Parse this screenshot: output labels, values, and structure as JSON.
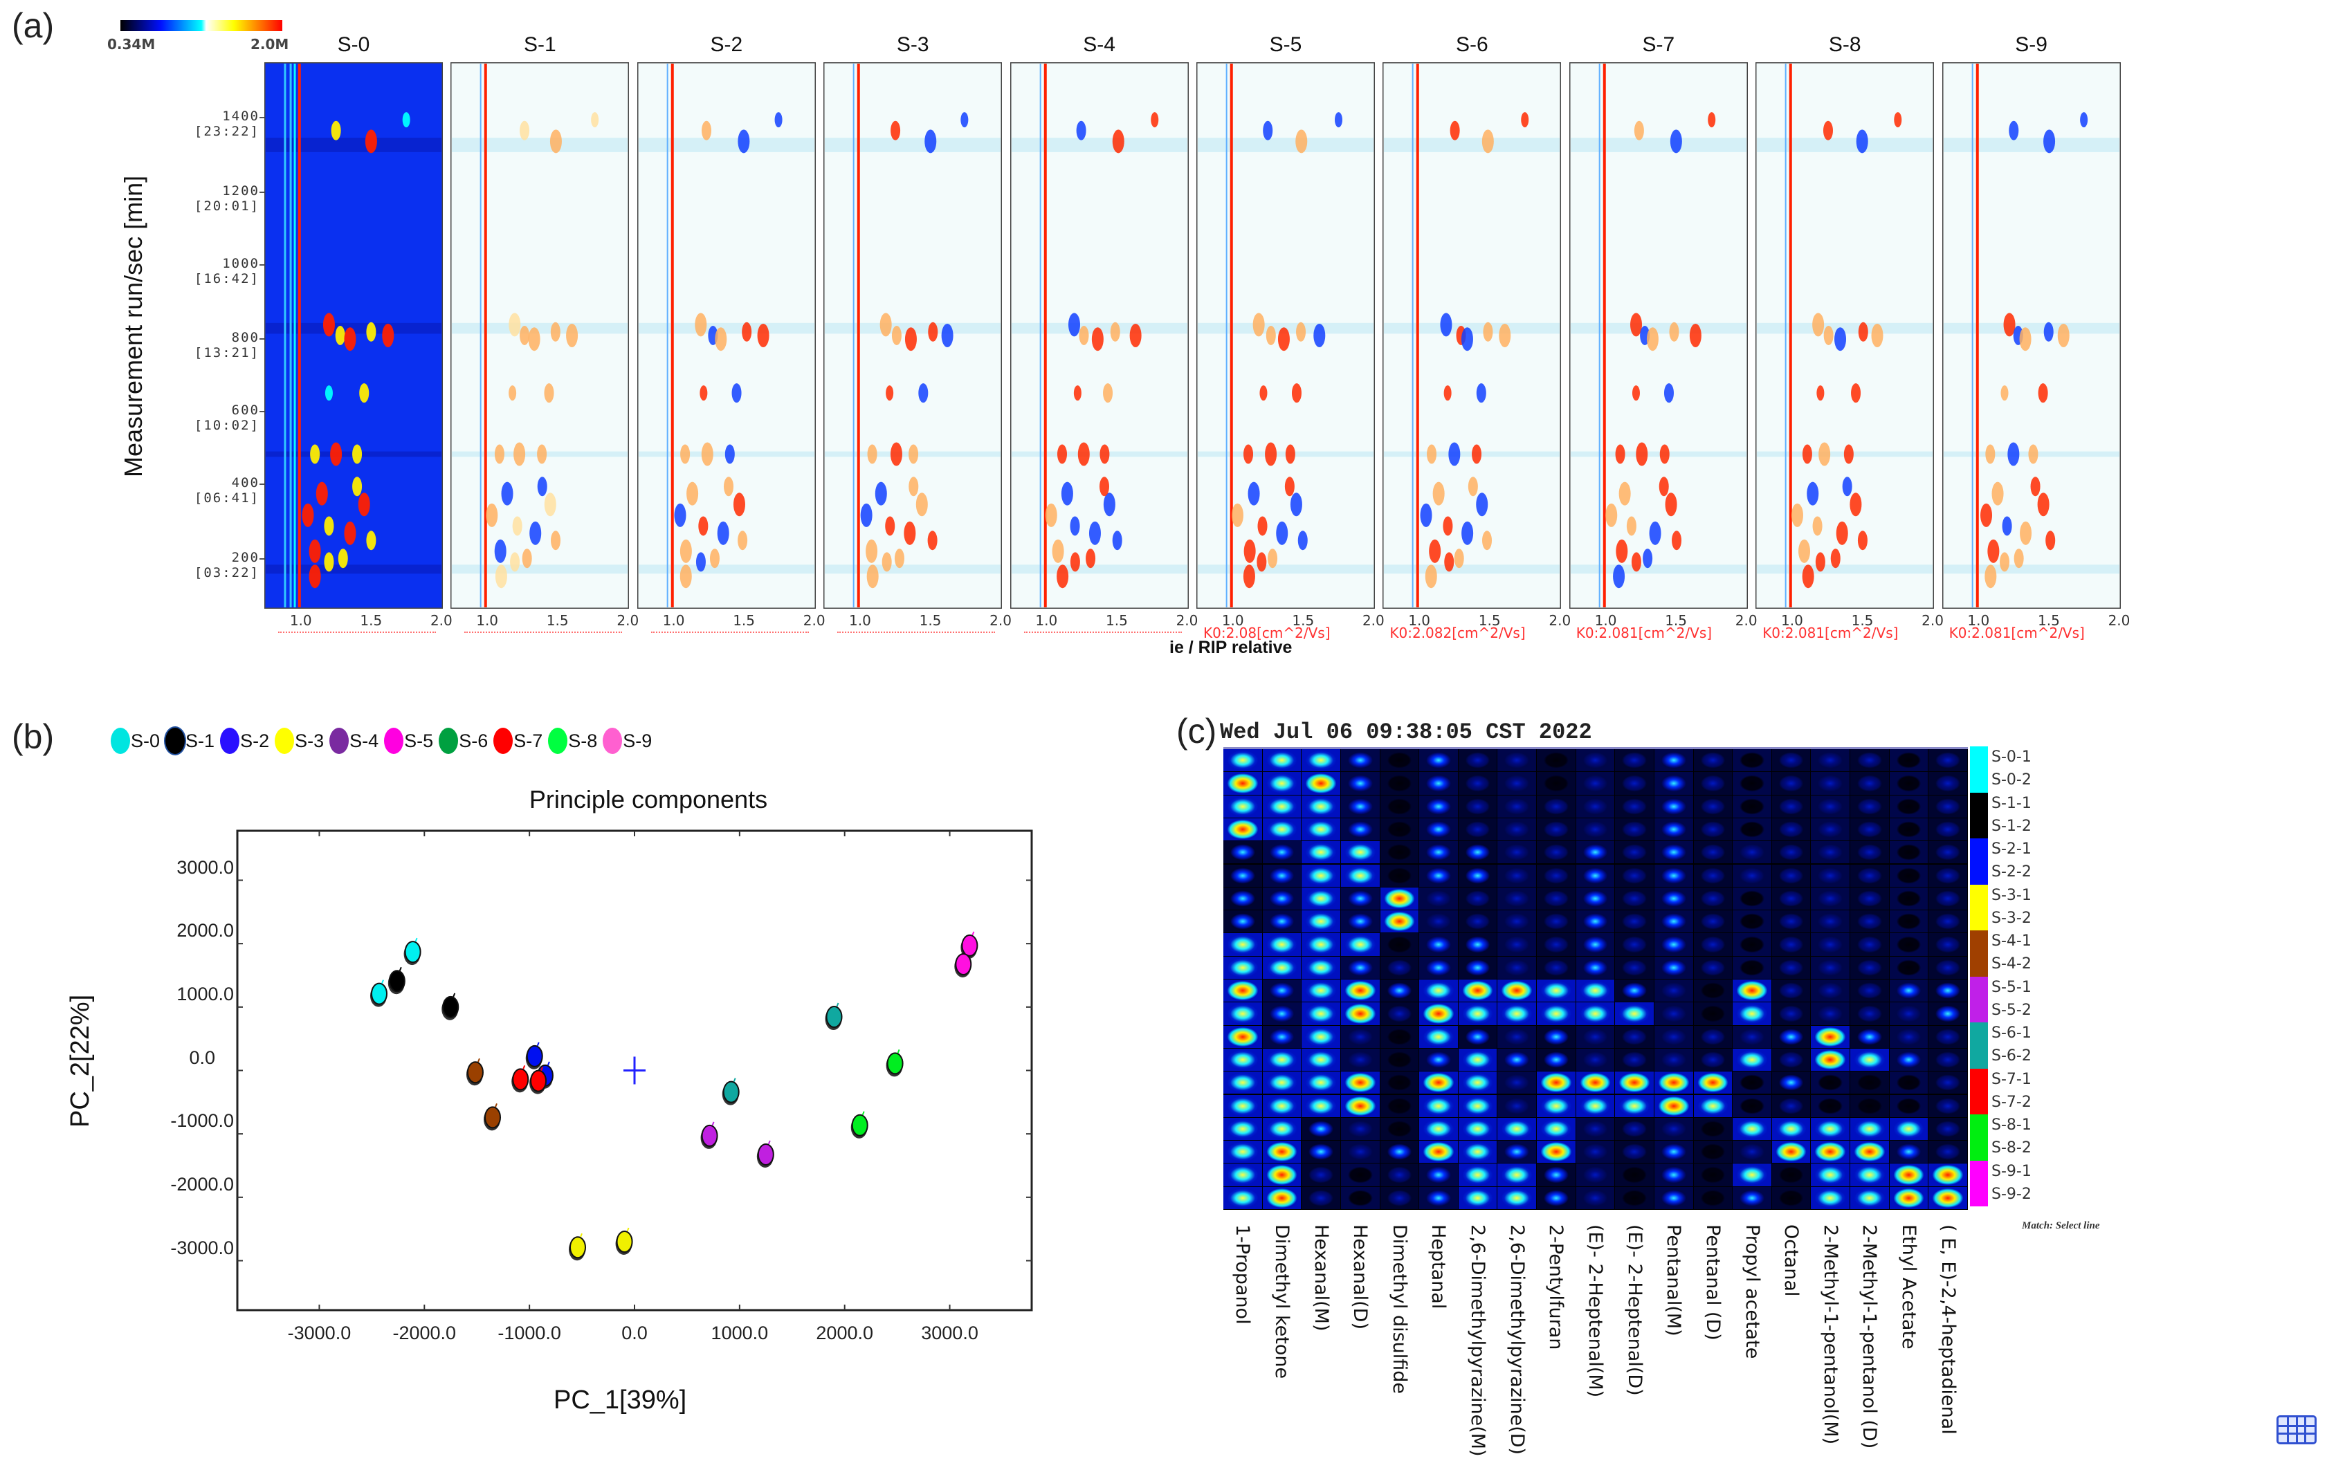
{
  "panel_labels": {
    "a": "(a)",
    "b": "(b)",
    "c": "(c)"
  },
  "panel_a": {
    "colorbar": {
      "min_label": "0.34M",
      "max_label": "2.0M"
    },
    "y_axis_title": "Measurement run/sec [min]",
    "y_ticks": [
      {
        "value": "1400",
        "time": "[23:22]"
      },
      {
        "value": "1200",
        "time": "[20:01]"
      },
      {
        "value": "1000",
        "time": "[16:42]"
      },
      {
        "value": "800",
        "time": "[13:21]"
      },
      {
        "value": "600",
        "time": "[10:02]"
      },
      {
        "value": "400",
        "time": "[06:41]"
      },
      {
        "value": "200",
        "time": "[03:22]"
      }
    ],
    "x_ticks": [
      "1.0",
      "1.5",
      "2.0"
    ],
    "x_axis_partial_title": "ie / RIP relative",
    "spectra": [
      {
        "name": "S-0",
        "k0": ""
      },
      {
        "name": "S-1",
        "k0": ""
      },
      {
        "name": "S-2",
        "k0": ""
      },
      {
        "name": "S-3",
        "k0": ""
      },
      {
        "name": "S-4",
        "k0": ""
      },
      {
        "name": "S-5",
        "k0": "K0:2.08[cm^2/Vs]"
      },
      {
        "name": "S-6",
        "k0": "K0:2.082[cm^2/Vs]"
      },
      {
        "name": "S-7",
        "k0": "K0:2.081[cm^2/Vs]"
      },
      {
        "name": "S-8",
        "k0": "K0:2.081[cm^2/Vs]"
      },
      {
        "name": "S-9",
        "k0": "K0:2.081[cm^2/Vs]"
      }
    ]
  },
  "chart_data": {
    "type": "scatter",
    "title": "Principle components",
    "xlabel": "PC_1[39%]",
    "ylabel": "PC_2[22%]",
    "xlim": [
      -3780,
      3780
    ],
    "ylim": [
      -3780,
      3780
    ],
    "x_ticks": [
      -3000,
      -2000,
      -1000,
      0,
      1000,
      2000,
      3000
    ],
    "x_tick_labels": [
      "-3000.0",
      "-2000.0",
      "-1000.0",
      "0.0",
      "1000.0",
      "2000.0",
      "3000.0"
    ],
    "y_ticks": [
      3000,
      2000,
      1000,
      0,
      -1000,
      -2000,
      -3000
    ],
    "y_tick_labels": [
      "3000.0",
      "2000.0",
      "1000.0",
      "0.0",
      "-1000.0",
      "-2000.0",
      "-3000.0"
    ],
    "legend": [
      {
        "label": "S-0",
        "color": "#00e5e0"
      },
      {
        "label": "S-1",
        "color": "#000000"
      },
      {
        "label": "S-2",
        "color": "#2a10ff"
      },
      {
        "label": "S-3",
        "color": "#ffff00"
      },
      {
        "label": "S-4",
        "color": "#7a2aa0"
      },
      {
        "label": "S-5",
        "color": "#ff00e0"
      },
      {
        "label": "S-6",
        "color": "#00a040"
      },
      {
        "label": "S-7",
        "color": "#ff0000"
      },
      {
        "label": "S-8",
        "color": "#00ff40"
      },
      {
        "label": "S-9",
        "color": "#ff60d0"
      }
    ],
    "legend_position": "top-left",
    "center_marker": {
      "x": 0,
      "y": 0,
      "color": "#2020ff"
    },
    "series": [
      {
        "name": "S-0",
        "color": "#00f0f0",
        "points": [
          [
            -2110,
            1870
          ],
          [
            -2430,
            1210
          ]
        ]
      },
      {
        "name": "S-1",
        "color": "#000000",
        "points": [
          [
            -2260,
            1410
          ],
          [
            -1750,
            1000
          ]
        ]
      },
      {
        "name": "S-2",
        "color": "#0010f0",
        "points": [
          [
            -950,
            225
          ],
          [
            -850,
            -80
          ]
        ]
      },
      {
        "name": "S-3",
        "color": "#f0f000",
        "points": [
          [
            -540,
            -2790
          ],
          [
            -95,
            -2700
          ]
        ]
      },
      {
        "name": "S-4",
        "color": "#9a4000",
        "points": [
          [
            -1515,
            -30
          ],
          [
            -1350,
            -740
          ]
        ]
      },
      {
        "name": "S-5",
        "color": "#c020e0",
        "points": [
          [
            715,
            -1030
          ],
          [
            1250,
            -1325
          ]
        ]
      },
      {
        "name": "S-6",
        "color": "#10a8a0",
        "points": [
          [
            920,
            -340
          ],
          [
            1900,
            845
          ]
        ]
      },
      {
        "name": "S-7",
        "color": "#ff0000",
        "points": [
          [
            -1085,
            -140
          ],
          [
            -915,
            -165
          ]
        ]
      },
      {
        "name": "S-8",
        "color": "#00ee20",
        "points": [
          [
            2145,
            -865
          ],
          [
            2480,
            110
          ]
        ]
      },
      {
        "name": "S-9",
        "color": "#ff10e0",
        "points": [
          [
            3190,
            1970
          ],
          [
            3130,
            1675
          ]
        ]
      }
    ]
  },
  "panel_c": {
    "timestamp": "Wed Jul 06 09:38:05 CST 2022",
    "match_text": "Match: Select line",
    "columns": [
      "1-Propanol",
      "Dimethyl ketone",
      "Hexanal(M)",
      "Hexanal(D)",
      "Dimethyl disulfide",
      "Heptanal",
      "2,6-Dimethylpyrazine(M)",
      "2,6-Dimethylpyrazine(D)",
      "2-Pentylfuran",
      "(E)- 2-Heptenal(M)",
      "(E)- 2-Heptenal(D)",
      "Pentanal(M)",
      "Pentanal (D)",
      "Propyl acetate",
      "Octanal",
      "2-Methyl-1-pentanol(M)",
      "2-Methyl-1-pentanol (D)",
      "Ethyl Acetate",
      "( E, E)-2,4-heptadienal"
    ],
    "rows": [
      {
        "label": "S-0-1",
        "color": "#00ffff"
      },
      {
        "label": "S-0-2",
        "color": "#00ffff"
      },
      {
        "label": "S-1-1",
        "color": "#000000"
      },
      {
        "label": "S-1-2",
        "color": "#000000"
      },
      {
        "label": "S-2-1",
        "color": "#0010ff"
      },
      {
        "label": "S-2-2",
        "color": "#0010ff"
      },
      {
        "label": "S-3-1",
        "color": "#ffff00"
      },
      {
        "label": "S-3-2",
        "color": "#ffff00"
      },
      {
        "label": "S-4-1",
        "color": "#a04000"
      },
      {
        "label": "S-4-2",
        "color": "#a04000"
      },
      {
        "label": "S-5-1",
        "color": "#c020e8"
      },
      {
        "label": "S-5-2",
        "color": "#c020e8"
      },
      {
        "label": "S-6-1",
        "color": "#10a8a0"
      },
      {
        "label": "S-6-2",
        "color": "#10a8a0"
      },
      {
        "label": "S-7-1",
        "color": "#ff0000"
      },
      {
        "label": "S-7-2",
        "color": "#ff0000"
      },
      {
        "label": "S-8-1",
        "color": "#00ee10"
      },
      {
        "label": "S-8-2",
        "color": "#00ee10"
      },
      {
        "label": "S-9-1",
        "color": "#ff00ff"
      },
      {
        "label": "S-9-2",
        "color": "#ff00ff"
      }
    ],
    "intensity_scale": "0=none 4=max",
    "intensity": [
      [
        3,
        3,
        3,
        2,
        0,
        2,
        1,
        1,
        0,
        1,
        1,
        2,
        1,
        0,
        1,
        1,
        1,
        0,
        1
      ],
      [
        4,
        3,
        4,
        2,
        0,
        2,
        1,
        1,
        0,
        1,
        1,
        2,
        1,
        0,
        1,
        1,
        1,
        0,
        1
      ],
      [
        3,
        3,
        3,
        2,
        0,
        2,
        1,
        1,
        1,
        1,
        1,
        2,
        1,
        0,
        1,
        1,
        1,
        0,
        1
      ],
      [
        4,
        3,
        3,
        2,
        0,
        2,
        1,
        1,
        1,
        1,
        1,
        2,
        1,
        0,
        1,
        1,
        1,
        0,
        1
      ],
      [
        2,
        2,
        3,
        3,
        0,
        2,
        2,
        1,
        1,
        2,
        1,
        2,
        1,
        1,
        1,
        1,
        1,
        0,
        1
      ],
      [
        2,
        2,
        3,
        3,
        0,
        2,
        2,
        1,
        1,
        2,
        1,
        2,
        1,
        1,
        1,
        1,
        1,
        0,
        1
      ],
      [
        2,
        2,
        3,
        2,
        4,
        1,
        1,
        1,
        1,
        2,
        1,
        2,
        1,
        0,
        1,
        1,
        1,
        0,
        1
      ],
      [
        2,
        2,
        3,
        2,
        4,
        1,
        1,
        1,
        1,
        2,
        1,
        2,
        1,
        0,
        1,
        1,
        1,
        0,
        1
      ],
      [
        3,
        3,
        3,
        3,
        0,
        2,
        2,
        1,
        1,
        2,
        1,
        2,
        1,
        0,
        1,
        1,
        1,
        0,
        1
      ],
      [
        3,
        3,
        3,
        2,
        1,
        2,
        2,
        1,
        1,
        2,
        1,
        2,
        1,
        0,
        1,
        1,
        1,
        0,
        1
      ],
      [
        4,
        2,
        3,
        4,
        2,
        3,
        4,
        4,
        3,
        3,
        2,
        1,
        0,
        4,
        1,
        1,
        1,
        2,
        2
      ],
      [
        3,
        2,
        3,
        4,
        1,
        4,
        3,
        3,
        3,
        3,
        3,
        1,
        0,
        3,
        1,
        1,
        1,
        1,
        2
      ],
      [
        4,
        2,
        3,
        1,
        0,
        3,
        2,
        1,
        2,
        1,
        1,
        1,
        1,
        1,
        2,
        4,
        2,
        1,
        1
      ],
      [
        3,
        3,
        3,
        1,
        0,
        2,
        3,
        2,
        2,
        1,
        1,
        1,
        1,
        3,
        1,
        4,
        3,
        2,
        1
      ],
      [
        3,
        3,
        3,
        4,
        0,
        4,
        3,
        1,
        4,
        4,
        4,
        4,
        4,
        0,
        2,
        0,
        0,
        0,
        1
      ],
      [
        3,
        3,
        3,
        4,
        0,
        3,
        3,
        1,
        3,
        3,
        3,
        4,
        3,
        0,
        1,
        0,
        0,
        0,
        1
      ],
      [
        3,
        3,
        2,
        1,
        0,
        3,
        3,
        3,
        3,
        1,
        1,
        1,
        0,
        3,
        3,
        3,
        3,
        3,
        1
      ],
      [
        3,
        4,
        2,
        1,
        2,
        4,
        3,
        2,
        4,
        1,
        1,
        2,
        0,
        1,
        4,
        4,
        4,
        2,
        1
      ],
      [
        3,
        4,
        1,
        0,
        1,
        2,
        3,
        3,
        2,
        1,
        0,
        2,
        0,
        3,
        0,
        3,
        3,
        4,
        4
      ],
      [
        3,
        4,
        1,
        0,
        1,
        2,
        3,
        3,
        2,
        1,
        0,
        2,
        0,
        2,
        0,
        3,
        3,
        4,
        4
      ]
    ]
  },
  "corner_icon": "grid-table-icon"
}
